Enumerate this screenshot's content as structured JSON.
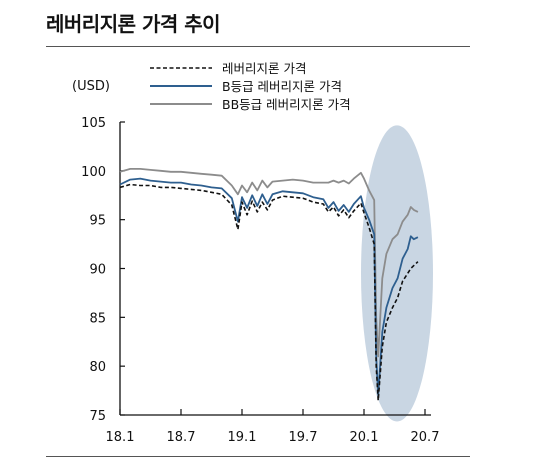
{
  "header": {
    "title": "레버리지론 가격 추이"
  },
  "chart_data": {
    "type": "line",
    "title": "레버리지론 가격 추이",
    "ylabel": "(USD)",
    "xlabel": "",
    "ylim": [
      75,
      105
    ],
    "yticks": [
      75,
      80,
      85,
      90,
      95,
      100,
      105
    ],
    "x_tick_labels": [
      "18.1",
      "18.7",
      "19.1",
      "19.7",
      "20.1",
      "20.7"
    ],
    "x_tick_index": [
      0,
      6,
      12,
      18,
      24,
      30
    ],
    "legend_position": "top",
    "highlight": {
      "shape": "ellipse",
      "x_range_label": [
        "20.1",
        "20.7"
      ],
      "color": "#c9d6e3"
    },
    "series": [
      {
        "name": "레버리지론 가격",
        "style": "dashed",
        "color": "#111111",
        "points": [
          [
            0,
            98.3
          ],
          [
            1,
            98.6
          ],
          [
            2,
            98.5
          ],
          [
            3,
            98.5
          ],
          [
            4,
            98.3
          ],
          [
            5,
            98.3
          ],
          [
            6,
            98.2
          ],
          [
            7,
            98.1
          ],
          [
            8,
            98.0
          ],
          [
            9,
            97.8
          ],
          [
            10,
            97.6
          ],
          [
            11,
            96.5
          ],
          [
            11.6,
            94.0
          ],
          [
            12,
            96.8
          ],
          [
            12.5,
            95.5
          ],
          [
            13,
            96.9
          ],
          [
            13.5,
            95.8
          ],
          [
            14,
            96.8
          ],
          [
            14.5,
            96.0
          ],
          [
            15,
            97.0
          ],
          [
            16,
            97.4
          ],
          [
            17,
            97.3
          ],
          [
            18,
            97.2
          ],
          [
            19,
            96.8
          ],
          [
            20,
            96.6
          ],
          [
            20.5,
            95.8
          ],
          [
            21,
            96.3
          ],
          [
            21.5,
            95.4
          ],
          [
            22,
            96.0
          ],
          [
            22.5,
            95.2
          ],
          [
            23,
            95.9
          ],
          [
            23.7,
            96.7
          ],
          [
            24,
            95.7
          ],
          [
            24.5,
            94.2
          ],
          [
            25,
            92.5
          ],
          [
            25.2,
            80.0
          ],
          [
            25.4,
            76.5
          ],
          [
            25.8,
            82.0
          ],
          [
            26.2,
            84.5
          ],
          [
            26.8,
            86.0
          ],
          [
            27.3,
            87.0
          ],
          [
            27.8,
            88.7
          ],
          [
            28.3,
            89.5
          ],
          [
            28.6,
            90.0
          ],
          [
            28.9,
            90.3
          ],
          [
            29.3,
            90.7
          ]
        ]
      },
      {
        "name": "B등급 레버리지론 가격",
        "style": "solid",
        "color": "#2e5f8f",
        "points": [
          [
            0,
            98.6
          ],
          [
            1,
            99.1
          ],
          [
            2,
            99.2
          ],
          [
            3,
            99.0
          ],
          [
            4,
            98.9
          ],
          [
            5,
            98.8
          ],
          [
            6,
            98.8
          ],
          [
            7,
            98.6
          ],
          [
            8,
            98.5
          ],
          [
            9,
            98.3
          ],
          [
            10,
            98.2
          ],
          [
            11,
            97.2
          ],
          [
            11.6,
            94.8
          ],
          [
            12,
            97.3
          ],
          [
            12.5,
            96.2
          ],
          [
            13,
            97.5
          ],
          [
            13.5,
            96.4
          ],
          [
            14,
            97.6
          ],
          [
            14.5,
            96.6
          ],
          [
            15,
            97.6
          ],
          [
            16,
            97.9
          ],
          [
            17,
            97.8
          ],
          [
            18,
            97.7
          ],
          [
            19,
            97.3
          ],
          [
            20,
            97.1
          ],
          [
            20.5,
            96.2
          ],
          [
            21,
            96.8
          ],
          [
            21.5,
            95.9
          ],
          [
            22,
            96.5
          ],
          [
            22.5,
            95.8
          ],
          [
            23,
            96.6
          ],
          [
            23.7,
            97.4
          ],
          [
            24,
            96.2
          ],
          [
            24.5,
            95.0
          ],
          [
            25,
            93.5
          ],
          [
            25.2,
            81.0
          ],
          [
            25.4,
            77.0
          ],
          [
            25.8,
            83.5
          ],
          [
            26.2,
            86.0
          ],
          [
            26.8,
            88.0
          ],
          [
            27.3,
            89.0
          ],
          [
            27.8,
            91.0
          ],
          [
            28.3,
            92.0
          ],
          [
            28.6,
            93.3
          ],
          [
            28.9,
            93.0
          ],
          [
            29.3,
            93.2
          ]
        ]
      },
      {
        "name": "BB등급 레버리지론 가격",
        "style": "solid",
        "color": "#8c8c8c",
        "points": [
          [
            0,
            99.9
          ],
          [
            1,
            100.2
          ],
          [
            2,
            100.2
          ],
          [
            3,
            100.1
          ],
          [
            4,
            100.0
          ],
          [
            5,
            99.9
          ],
          [
            6,
            99.9
          ],
          [
            7,
            99.8
          ],
          [
            8,
            99.7
          ],
          [
            9,
            99.6
          ],
          [
            10,
            99.5
          ],
          [
            11,
            98.5
          ],
          [
            11.6,
            97.6
          ],
          [
            12,
            98.5
          ],
          [
            12.5,
            97.8
          ],
          [
            13,
            98.8
          ],
          [
            13.5,
            98.0
          ],
          [
            14,
            99.0
          ],
          [
            14.5,
            98.3
          ],
          [
            15,
            98.9
          ],
          [
            16,
            99.0
          ],
          [
            17,
            99.1
          ],
          [
            18,
            99.0
          ],
          [
            19,
            98.8
          ],
          [
            20,
            98.8
          ],
          [
            20.5,
            98.8
          ],
          [
            21,
            99.0
          ],
          [
            21.5,
            98.8
          ],
          [
            22,
            99.0
          ],
          [
            22.5,
            98.7
          ],
          [
            23,
            99.2
          ],
          [
            23.7,
            99.8
          ],
          [
            24,
            99.2
          ],
          [
            24.5,
            98.0
          ],
          [
            25,
            97.0
          ],
          [
            25.2,
            85.0
          ],
          [
            25.4,
            81.0
          ],
          [
            25.8,
            89.0
          ],
          [
            26.2,
            91.5
          ],
          [
            26.8,
            93.0
          ],
          [
            27.3,
            93.5
          ],
          [
            27.8,
            94.8
          ],
          [
            28.3,
            95.5
          ],
          [
            28.6,
            96.3
          ],
          [
            28.9,
            96.0
          ],
          [
            29.3,
            95.8
          ]
        ]
      }
    ]
  }
}
